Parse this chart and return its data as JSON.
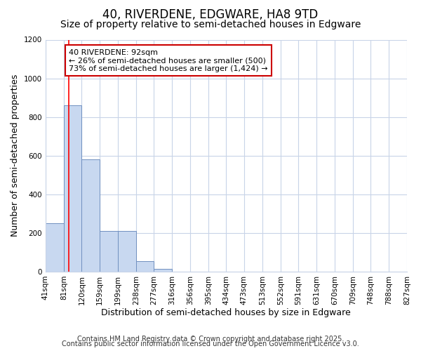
{
  "title_line1": "40, RIVERDENE, EDGWARE, HA8 9TD",
  "title_line2": "Size of property relative to semi-detached houses in Edgware",
  "xlabel": "Distribution of semi-detached houses by size in Edgware",
  "ylabel": "Number of semi-detached properties",
  "bar_values": [
    250,
    860,
    580,
    210,
    210,
    55,
    15,
    0,
    0,
    0,
    0,
    0,
    0,
    0,
    0,
    0,
    0,
    0,
    0,
    0
  ],
  "bin_edges": [
    41,
    81,
    120,
    159,
    199,
    238,
    277,
    316,
    356,
    395,
    434,
    473,
    513,
    552,
    591,
    631,
    670,
    709,
    748,
    788,
    827
  ],
  "tick_labels": [
    "41sqm",
    "81sqm",
    "120sqm",
    "159sqm",
    "199sqm",
    "238sqm",
    "277sqm",
    "316sqm",
    "356sqm",
    "395sqm",
    "434sqm",
    "473sqm",
    "513sqm",
    "552sqm",
    "591sqm",
    "631sqm",
    "670sqm",
    "709sqm",
    "748sqm",
    "788sqm",
    "827sqm"
  ],
  "bar_color": "#c8d8f0",
  "bar_edge_color": "#7090c0",
  "grid_color": "#c8d4e8",
  "background_color": "#ffffff",
  "fig_background": "#ffffff",
  "red_line_x": 92,
  "annotation_line1": "40 RIVERDENE: 92sqm",
  "annotation_line2": "← 26% of semi-detached houses are smaller (500)",
  "annotation_line3": "73% of semi-detached houses are larger (1,424) →",
  "annotation_box_color": "#ffffff",
  "annotation_border_color": "#cc0000",
  "ylim": [
    0,
    1200
  ],
  "yticks": [
    0,
    200,
    400,
    600,
    800,
    1000,
    1200
  ],
  "footer_line1": "Contains HM Land Registry data © Crown copyright and database right 2025.",
  "footer_line2": "Contains public sector information licensed under the Open Government Licence v3.0.",
  "title_fontsize": 12,
  "subtitle_fontsize": 10,
  "axis_label_fontsize": 9,
  "tick_fontsize": 7.5,
  "footer_fontsize": 7,
  "annotation_fontsize": 8
}
